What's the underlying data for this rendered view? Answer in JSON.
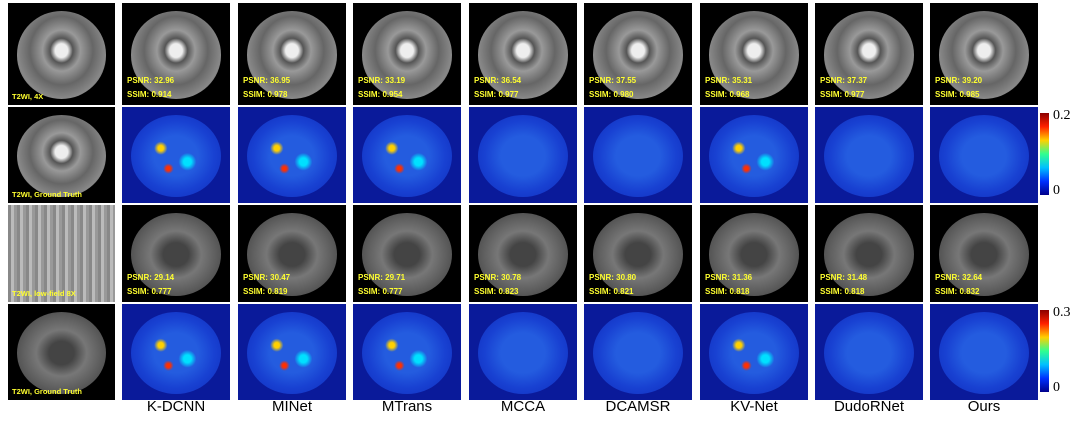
{
  "columns": [
    "K-DCNN",
    "MINet",
    "MTrans",
    "MCCA",
    "DCAMSR",
    "KV-Net",
    "DudoRNet",
    "Ours"
  ],
  "rows": [
    {
      "label": "T2WI, 4X",
      "metrics": [
        {
          "psnr": "PSNR: 32.96",
          "ssim": "SSIM: 0.914"
        },
        {
          "psnr": "PSNR: 36.95",
          "ssim": "SSIM: 0.978"
        },
        {
          "psnr": "PSNR: 33.19",
          "ssim": "SSIM: 0.954"
        },
        {
          "psnr": "PSNR: 36.54",
          "ssim": "SSIM: 0.977"
        },
        {
          "psnr": "PSNR: 37.55",
          "ssim": "SSIM: 0.980"
        },
        {
          "psnr": "PSNR: 35.31",
          "ssim": "SSIM: 0.968"
        },
        {
          "psnr": "PSNR: 37.37",
          "ssim": "SSIM: 0.977"
        },
        {
          "psnr": "PSNR: 39.20",
          "ssim": "SSIM: 0.985"
        }
      ]
    },
    {
      "label": "T2WI, Ground Truth",
      "colorbar": {
        "max": "0.2",
        "min": "0"
      }
    },
    {
      "label": "T2WI, low-field 8X",
      "metrics": [
        {
          "psnr": "PSNR: 29.14",
          "ssim": "SSIM: 0.777"
        },
        {
          "psnr": "PSNR: 30.47",
          "ssim": "SSIM: 0.819"
        },
        {
          "psnr": "PSNR: 29.71",
          "ssim": "SSIM: 0.777"
        },
        {
          "psnr": "PSNR: 30.78",
          "ssim": "SSIM: 0.823"
        },
        {
          "psnr": "PSNR: 30.80",
          "ssim": "SSIM: 0.821"
        },
        {
          "psnr": "PSNR: 31.36",
          "ssim": "SSIM: 0.818"
        },
        {
          "psnr": "PSNR: 31.48",
          "ssim": "SSIM: 0.818"
        },
        {
          "psnr": "PSNR: 32.64",
          "ssim": "SSIM: 0.832"
        }
      ]
    },
    {
      "label": "T2WI, Ground Truth",
      "colorbar": {
        "max": "0.3",
        "min": "0"
      }
    }
  ]
}
